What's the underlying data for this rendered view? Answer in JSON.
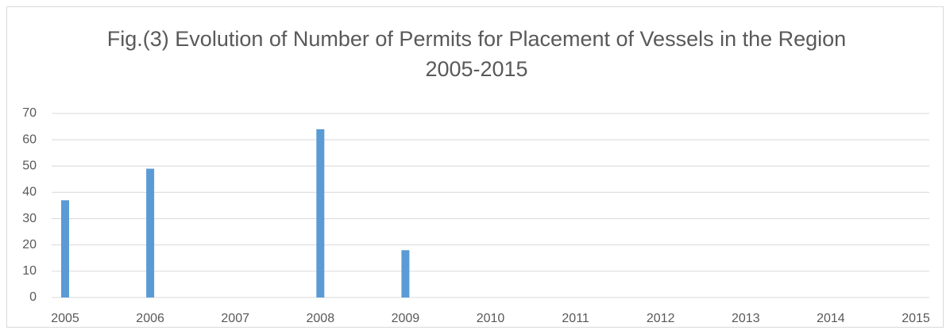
{
  "chart_data": {
    "type": "bar",
    "title": "Fig.(3) Evolution of Number of Permits for Placement of Vessels in the Region 2005-2015",
    "categories": [
      "2005",
      "2006",
      "2007",
      "2008",
      "2009",
      "2010",
      "2011",
      "2012",
      "2013",
      "2014",
      "2015"
    ],
    "values": [
      37,
      49,
      null,
      64,
      18,
      null,
      null,
      null,
      null,
      null,
      null
    ],
    "color": "#5b9bd5",
    "ylim": [
      0,
      70
    ],
    "yticks": [
      0,
      10,
      20,
      30,
      40,
      50,
      60,
      70
    ],
    "grid": true
  }
}
